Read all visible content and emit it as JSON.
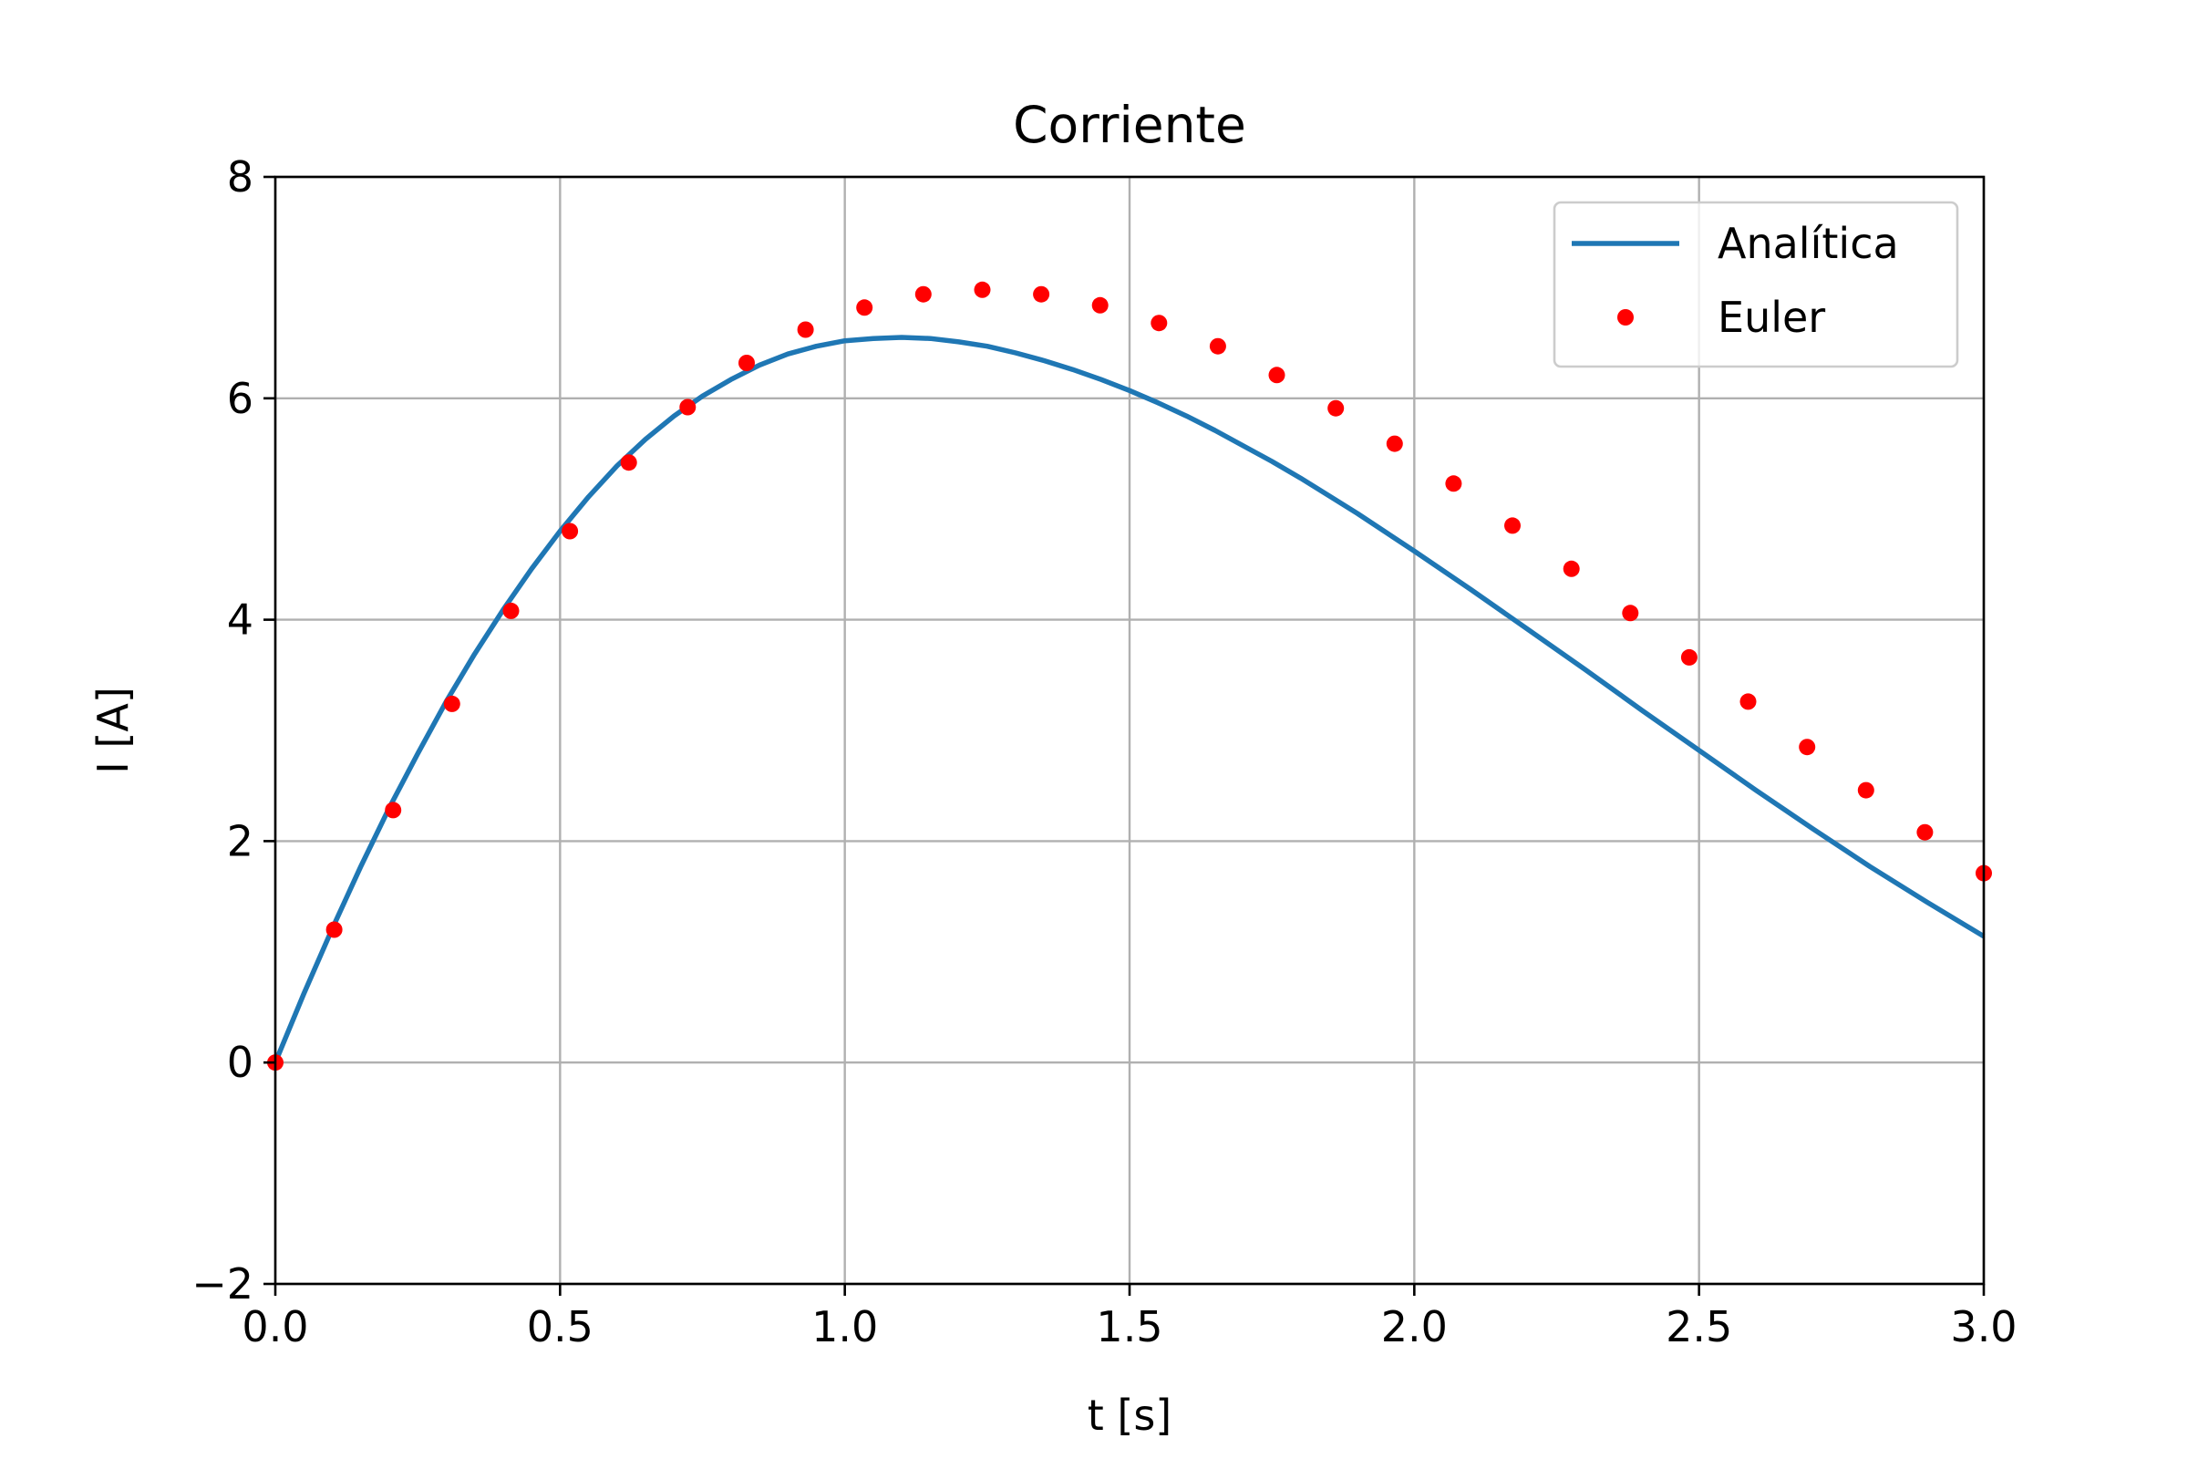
{
  "chart_data": {
    "type": "line",
    "title": "Corriente",
    "xlabel": "t [s]",
    "ylabel": "I [A]",
    "xlim": [
      0,
      3
    ],
    "ylim": [
      -2,
      8
    ],
    "xticks": [
      0,
      0.5,
      1,
      1.5,
      2,
      2.5,
      3
    ],
    "xtick_labels": [
      "0.0",
      "0.5",
      "1.0",
      "1.5",
      "2.0",
      "2.5",
      "3.0"
    ],
    "yticks": [
      -2,
      0,
      2,
      4,
      6,
      8
    ],
    "ytick_labels": [
      "−2",
      "0",
      "2",
      "4",
      "6",
      "8"
    ],
    "grid": true,
    "legend_position": "top-right",
    "series": [
      {
        "name": "Analítica",
        "style": "line",
        "color": "#1f77b4",
        "x": [
          0,
          0.05,
          0.1,
          0.15,
          0.2,
          0.25,
          0.3,
          0.35,
          0.4,
          0.45,
          0.5,
          0.55,
          0.6,
          0.65,
          0.7,
          0.75,
          0.8,
          0.85,
          0.9,
          0.95,
          1.0,
          1.05,
          1.1,
          1.15,
          1.2,
          1.25,
          1.3,
          1.35,
          1.4,
          1.45,
          1.5,
          1.55,
          1.6,
          1.65,
          1.7,
          1.75,
          1.8,
          1.85,
          1.9,
          1.95,
          2.0,
          2.1,
          2.2,
          2.3,
          2.4,
          2.5,
          2.6,
          2.7,
          2.8,
          2.9,
          3.0
        ],
        "y": [
          0,
          0.62,
          1.21,
          1.77,
          2.3,
          2.79,
          3.26,
          3.69,
          4.09,
          4.46,
          4.8,
          5.11,
          5.39,
          5.63,
          5.84,
          6.02,
          6.17,
          6.3,
          6.4,
          6.47,
          6.52,
          6.54,
          6.55,
          6.54,
          6.51,
          6.47,
          6.41,
          6.34,
          6.26,
          6.17,
          6.07,
          5.96,
          5.84,
          5.71,
          5.57,
          5.43,
          5.28,
          5.12,
          4.96,
          4.79,
          4.62,
          4.27,
          3.91,
          3.55,
          3.18,
          2.82,
          2.46,
          2.11,
          1.77,
          1.45,
          1.14
        ]
      },
      {
        "name": "Euler",
        "style": "markers",
        "color": "#ff0000",
        "x": [
          0,
          0.1034,
          0.2069,
          0.3103,
          0.4138,
          0.5172,
          0.6207,
          0.7241,
          0.8276,
          0.931,
          1.0345,
          1.1379,
          1.2414,
          1.3448,
          1.4483,
          1.5517,
          1.6552,
          1.7586,
          1.8621,
          1.9655,
          2.069,
          2.1724,
          2.2759,
          2.3793,
          2.4828,
          2.5862,
          2.6897,
          2.7931,
          2.8966,
          3.0
        ],
        "y": [
          0,
          1.2,
          2.28,
          3.24,
          4.08,
          4.8,
          5.42,
          5.92,
          6.32,
          6.62,
          6.82,
          6.94,
          6.98,
          6.94,
          6.84,
          6.68,
          6.47,
          6.21,
          5.91,
          5.59,
          5.23,
          4.85,
          4.46,
          4.06,
          3.66,
          3.26,
          2.85,
          2.46,
          2.08,
          1.71
        ]
      }
    ]
  }
}
